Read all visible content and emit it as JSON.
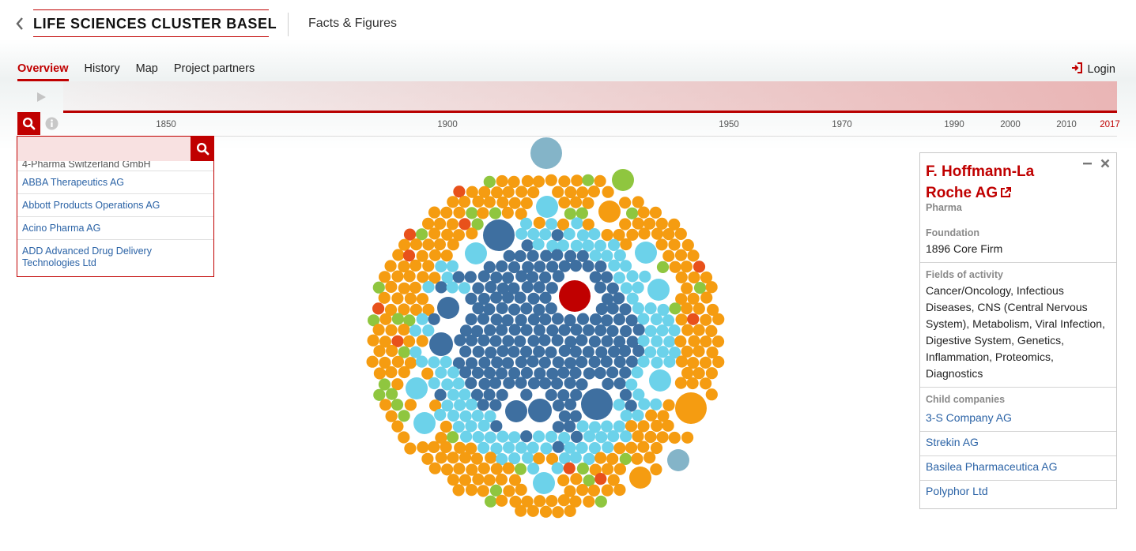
{
  "header": {
    "brand": "LIFE SCIENCES CLUSTER BASEL",
    "section_title": "Facts & Figures"
  },
  "nav": {
    "tabs": [
      {
        "label": "Overview",
        "active": true
      },
      {
        "label": "History",
        "active": false
      },
      {
        "label": "Map",
        "active": false
      },
      {
        "label": "Project partners",
        "active": false
      }
    ],
    "login_label": "Login"
  },
  "timeline": {
    "ticks": [
      "1850",
      "1900",
      "1950",
      "1970",
      "1990",
      "2000",
      "2010",
      "2017"
    ],
    "current_year": "2017"
  },
  "search": {
    "value": "",
    "placeholder": "",
    "results": [
      "4-Pharma Switzerland GmbH",
      "ABBA Therapeutics AG",
      "Abbott Products Operations AG",
      "Acino Pharma AG",
      "ADD Advanced Drug Delivery Technologies Ltd"
    ]
  },
  "detail": {
    "title": "F. Hoffmann-La Roche AG",
    "category": "Pharma",
    "foundation_label": "Foundation",
    "foundation_value": "1896 Core Firm",
    "fields_label": "Fields of activity",
    "fields_value": "Cancer/Oncology, Infectious Diseases, CNS (Central Nervous System), Metabolism, Viral Infection, Digestive System, Genetics, Inflammation, Proteomics, Diagnostics",
    "child_label": "Child companies",
    "children": [
      "3-S Company AG",
      "Strekin AG",
      "Basilea Pharmaceutica AG",
      "Polyphor Ltd"
    ]
  },
  "colors": {
    "accent": "#c00000",
    "link": "#2b63a6",
    "bubble_dark_blue": "#3e6fa0",
    "bubble_light_blue": "#6cd2ea",
    "bubble_gray_blue": "#84b4c8",
    "bubble_orange": "#f59c11",
    "bubble_green": "#8fc63f",
    "bubble_red_orange": "#e8511b",
    "bubble_selected": "#c00000"
  }
}
